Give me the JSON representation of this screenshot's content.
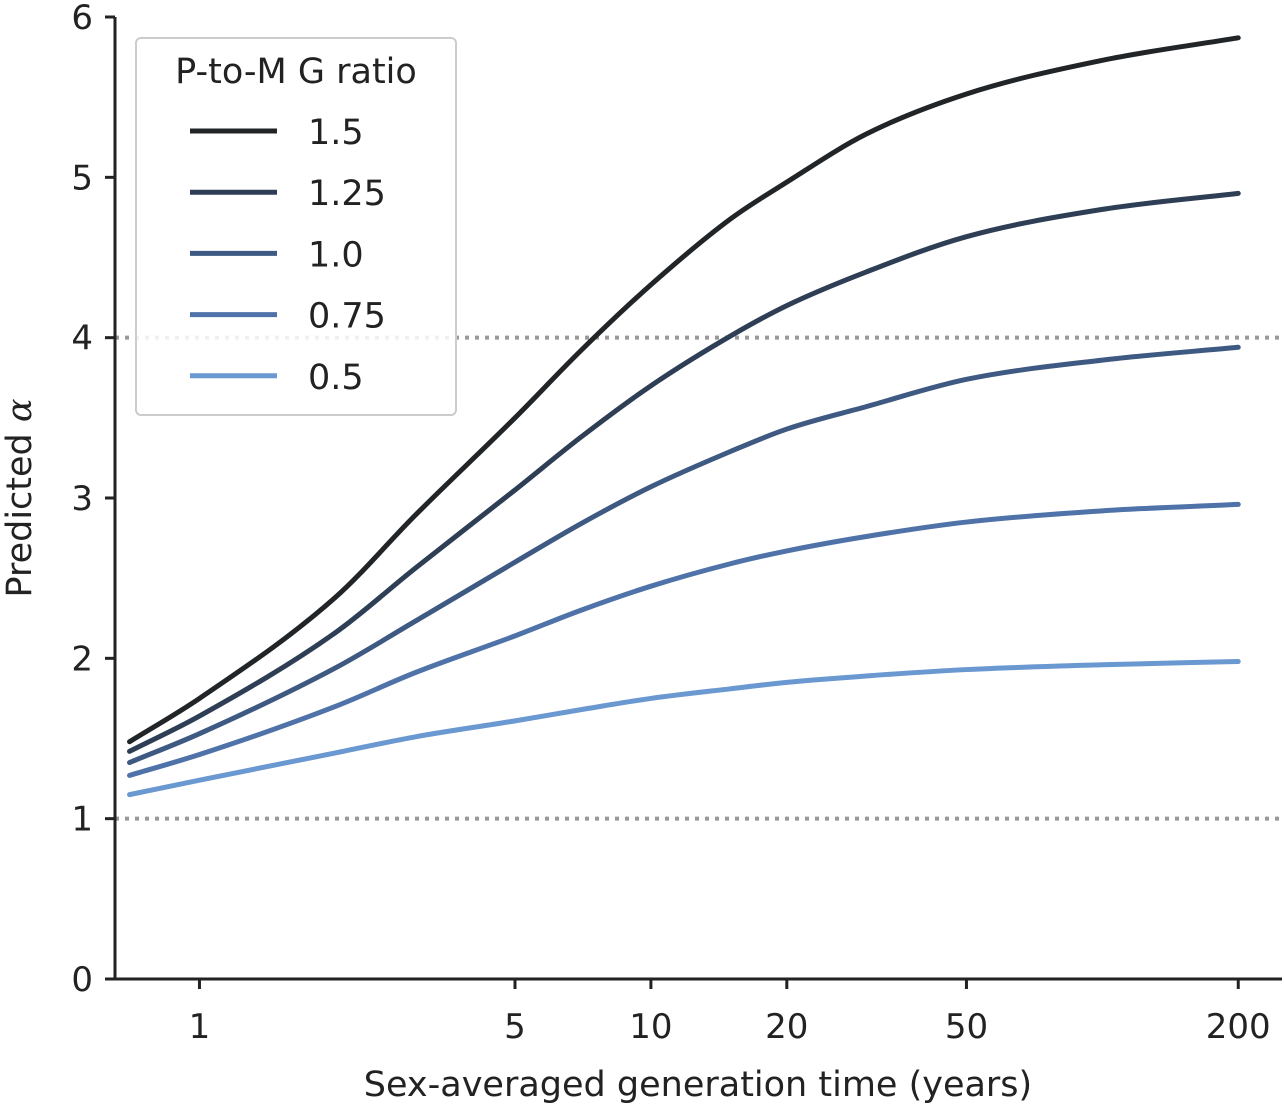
{
  "chart_data": {
    "type": "line",
    "title": "",
    "xlabel": "Sex-averaged generation time (years)",
    "ylabel": "Predicted α",
    "ylabel_prefix": "Predicted ",
    "ylabel_symbol": "α",
    "xscale": "log",
    "xlim": [
      0.65,
      250
    ],
    "ylim": [
      0,
      6
    ],
    "xticks": [
      1,
      5,
      10,
      20,
      50,
      200
    ],
    "xtick_labels": [
      "1",
      "5",
      "10",
      "20",
      "50",
      "200"
    ],
    "yticks": [
      0,
      1,
      2,
      3,
      4,
      5,
      6
    ],
    "ytick_labels": [
      "0",
      "1",
      "2",
      "3",
      "4",
      "5",
      "6"
    ],
    "reference_lines": [
      {
        "y": 1,
        "style": "dotted",
        "color": "#999999"
      },
      {
        "y": 4,
        "style": "dotted",
        "color": "#999999"
      }
    ],
    "legend": {
      "title": "P-to-M G ratio",
      "location": "top-left"
    },
    "x": [
      0.7,
      1,
      2,
      3,
      5,
      7,
      10,
      15,
      20,
      30,
      50,
      100,
      200
    ],
    "series": [
      {
        "name": "1.5",
        "color": "#222528",
        "values": [
          1.48,
          1.75,
          2.38,
          2.89,
          3.5,
          3.92,
          4.33,
          4.74,
          4.97,
          5.27,
          5.52,
          5.73,
          5.87
        ]
      },
      {
        "name": "1.25",
        "color": "#2e3e55",
        "values": [
          1.42,
          1.64,
          2.16,
          2.56,
          3.05,
          3.38,
          3.7,
          4.01,
          4.2,
          4.41,
          4.63,
          4.8,
          4.9
        ]
      },
      {
        "name": "1.0",
        "color": "#3e5a82",
        "values": [
          1.35,
          1.53,
          1.94,
          2.23,
          2.6,
          2.84,
          3.07,
          3.29,
          3.43,
          3.57,
          3.74,
          3.86,
          3.94
        ]
      },
      {
        "name": "0.75",
        "color": "#4f73a8",
        "values": [
          1.27,
          1.4,
          1.7,
          1.91,
          2.14,
          2.3,
          2.45,
          2.59,
          2.67,
          2.76,
          2.85,
          2.92,
          2.96
        ]
      },
      {
        "name": "0.5",
        "color": "#6a98d0",
        "values": [
          1.15,
          1.24,
          1.41,
          1.51,
          1.61,
          1.68,
          1.75,
          1.81,
          1.85,
          1.89,
          1.93,
          1.96,
          1.98
        ]
      }
    ]
  }
}
